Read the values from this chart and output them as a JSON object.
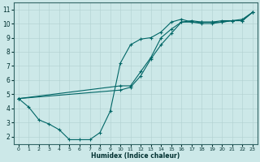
{
  "xlabel": "Humidex (Indice chaleur)",
  "bg_color": "#cce8e8",
  "line_color": "#006666",
  "xlim": [
    -0.5,
    23.5
  ],
  "ylim": [
    1.5,
    11.5
  ],
  "xticks": [
    0,
    1,
    2,
    3,
    4,
    5,
    6,
    7,
    8,
    9,
    10,
    11,
    12,
    13,
    14,
    15,
    16,
    17,
    18,
    19,
    20,
    21,
    22,
    23
  ],
  "yticks": [
    2,
    3,
    4,
    5,
    6,
    7,
    8,
    9,
    10,
    11
  ],
  "line1_x": [
    0,
    1,
    2,
    3,
    4,
    5,
    6,
    7,
    8,
    9,
    10,
    11,
    12,
    13,
    14,
    15,
    16,
    17,
    18,
    19,
    20,
    21,
    22,
    23
  ],
  "line1_y": [
    4.7,
    4.1,
    3.2,
    2.9,
    2.5,
    1.8,
    1.8,
    1.8,
    2.3,
    3.8,
    7.2,
    8.5,
    8.9,
    9.0,
    9.4,
    10.1,
    10.3,
    10.1,
    10.1,
    10.1,
    10.2,
    10.2,
    10.3,
    10.8
  ],
  "line2_x": [
    0,
    10,
    11,
    12,
    13,
    14,
    15,
    16,
    17,
    18,
    19,
    20,
    21,
    22,
    23
  ],
  "line2_y": [
    4.7,
    5.3,
    5.5,
    6.3,
    7.5,
    8.5,
    9.3,
    10.1,
    10.2,
    10.1,
    10.1,
    10.1,
    10.2,
    10.2,
    10.8
  ],
  "line3_x": [
    0,
    10,
    11,
    12,
    13,
    14,
    15,
    16,
    17,
    18,
    19,
    20,
    21,
    22,
    23
  ],
  "line3_y": [
    4.7,
    5.6,
    5.6,
    6.6,
    7.6,
    9.0,
    9.6,
    10.1,
    10.1,
    10.0,
    10.0,
    10.1,
    10.2,
    10.2,
    10.8
  ]
}
